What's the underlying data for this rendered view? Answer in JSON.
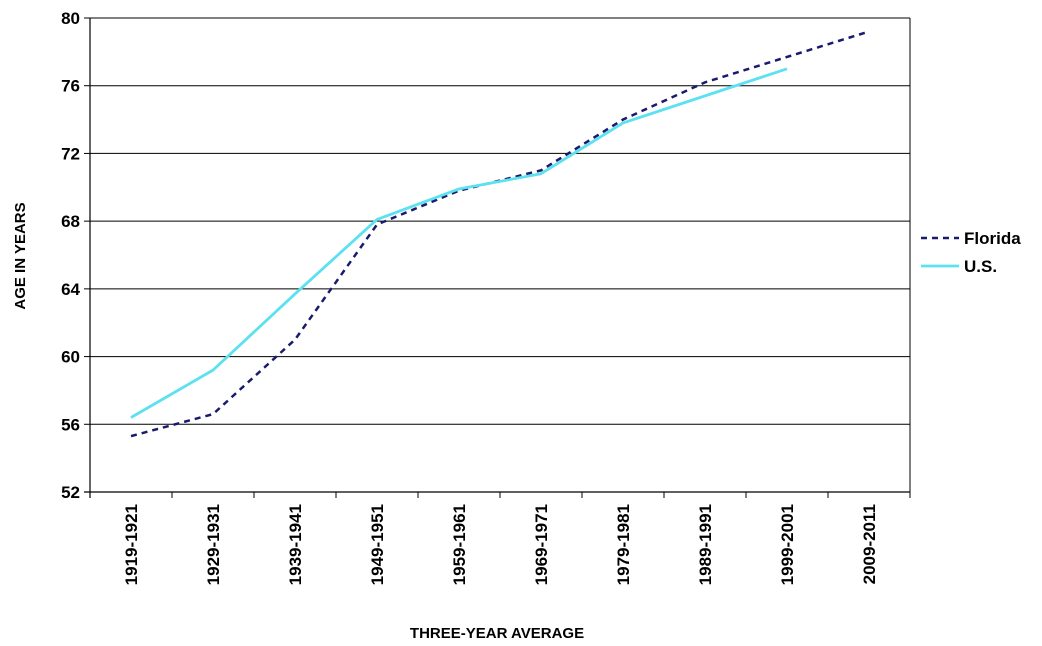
{
  "chart_data": {
    "type": "line",
    "xlabel": "THREE-YEAR AVERAGE",
    "ylabel": "AGE IN YEARS",
    "categories": [
      "1919-1921",
      "1929-1931",
      "1939-1941",
      "1949-1951",
      "1959-1961",
      "1969-1971",
      "1979-1981",
      "1989-1991",
      "1999-2001",
      "2009-2011"
    ],
    "yticks": [
      52,
      56,
      60,
      64,
      68,
      72,
      76,
      80
    ],
    "ylim": [
      52,
      80
    ],
    "grid": true,
    "legend_position": "right",
    "series": [
      {
        "name": "Florida",
        "color": "#1a1a6e",
        "style": "dashed",
        "values": [
          55.3,
          56.6,
          61.0,
          67.8,
          69.8,
          71.0,
          74.0,
          76.2,
          77.7,
          79.2
        ]
      },
      {
        "name": "U.S.",
        "color": "#5ce1f0",
        "style": "solid",
        "values": [
          56.4,
          59.2,
          63.7,
          68.1,
          69.9,
          70.8,
          73.8,
          75.4,
          77.0,
          null
        ]
      }
    ]
  }
}
